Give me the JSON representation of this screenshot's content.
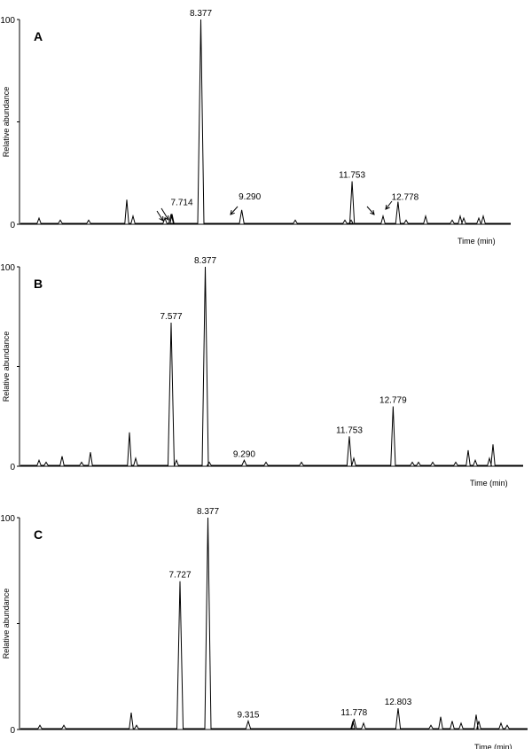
{
  "chart_data": [
    {
      "type": "line",
      "panel_label": "A",
      "xlabel": "Time (min)",
      "ylabel": "Relative abundance",
      "ylim": [
        0,
        100
      ],
      "yticks": [
        0,
        100
      ],
      "x_axis_unlabeled_ticks": true,
      "peaks": [
        {
          "time": 8.377,
          "abundance": 100,
          "label": "8.377"
        },
        {
          "time": 11.753,
          "abundance": 21,
          "label": "11.753"
        },
        {
          "time": 12.778,
          "abundance": 11,
          "label": "12.778"
        },
        {
          "time": 9.29,
          "abundance": 7,
          "label": "9.290"
        },
        {
          "time": 7.714,
          "abundance": 5,
          "label": "7.714"
        }
      ],
      "annotations": [
        "arrows at 7.714",
        "arrow at 9.290",
        "arrows at 12.778"
      ]
    },
    {
      "type": "line",
      "panel_label": "B",
      "xlabel": "Time (min)",
      "ylabel": "Relative abundance",
      "ylim": [
        0,
        100
      ],
      "yticks": [
        0,
        100
      ],
      "peaks": [
        {
          "time": 8.377,
          "abundance": 100,
          "label": "8.377"
        },
        {
          "time": 7.577,
          "abundance": 72,
          "label": "7.577"
        },
        {
          "time": 12.779,
          "abundance": 30,
          "label": "12.779"
        },
        {
          "time": 11.753,
          "abundance": 15,
          "label": "11.753"
        },
        {
          "time": 9.29,
          "abundance": 3,
          "label": "9.290"
        }
      ]
    },
    {
      "type": "line",
      "panel_label": "C",
      "xlabel": "Time (min)",
      "ylabel": "Relative abundance",
      "ylim": [
        0,
        100
      ],
      "yticks": [
        0,
        100
      ],
      "peaks": [
        {
          "time": 8.377,
          "abundance": 100,
          "label": "8.377"
        },
        {
          "time": 7.727,
          "abundance": 70,
          "label": "7.727"
        },
        {
          "time": 12.803,
          "abundance": 10,
          "label": "12.803"
        },
        {
          "time": 11.778,
          "abundance": 5,
          "label": "11.778"
        },
        {
          "time": 9.315,
          "abundance": 4,
          "label": "9.315"
        }
      ]
    }
  ]
}
